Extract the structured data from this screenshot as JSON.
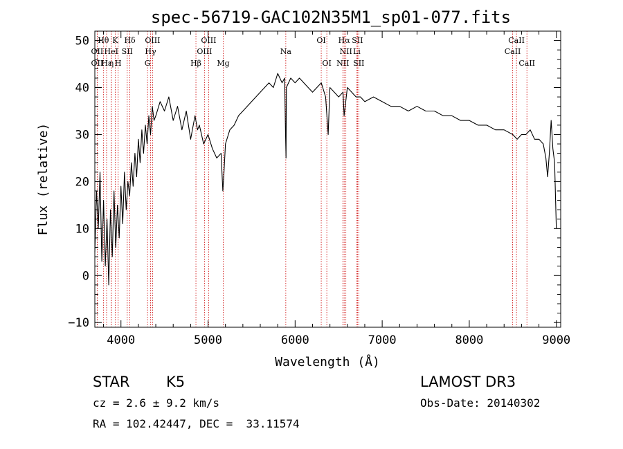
{
  "chart_data": {
    "type": "line",
    "title": "spec-56719-GAC102N35M1_sp01-077.fits",
    "xlabel": "Wavelength (Å)",
    "ylabel": "Flux (relative)",
    "xlim": [
      3700,
      9050
    ],
    "ylim": [
      -11,
      52
    ],
    "x_ticks": [
      4000,
      5000,
      6000,
      7000,
      8000,
      9000
    ],
    "y_ticks": [
      -10,
      0,
      10,
      20,
      30,
      40,
      50
    ],
    "x_tick_labels": [
      "4000",
      "5000",
      "6000",
      "7000",
      "8000",
      "9000"
    ],
    "y_tick_labels": [
      "−10",
      "0",
      "10",
      "20",
      "30",
      "40",
      "50"
    ],
    "series": [
      {
        "name": "flux",
        "x": [
          3700,
          3720,
          3740,
          3760,
          3780,
          3800,
          3820,
          3840,
          3860,
          3880,
          3900,
          3920,
          3940,
          3960,
          3980,
          4000,
          4020,
          4040,
          4060,
          4080,
          4100,
          4120,
          4140,
          4160,
          4180,
          4200,
          4220,
          4240,
          4260,
          4280,
          4300,
          4320,
          4340,
          4360,
          4380,
          4400,
          4450,
          4500,
          4550,
          4600,
          4650,
          4700,
          4750,
          4800,
          4850,
          4880,
          4900,
          4950,
          5000,
          5050,
          5100,
          5150,
          5170,
          5183,
          5200,
          5250,
          5300,
          5350,
          5400,
          5450,
          5500,
          5550,
          5600,
          5650,
          5700,
          5750,
          5800,
          5850,
          5880,
          5890,
          5896,
          5900,
          5950,
          6000,
          6050,
          6100,
          6150,
          6200,
          6250,
          6300,
          6350,
          6380,
          6400,
          6450,
          6500,
          6550,
          6563,
          6600,
          6650,
          6700,
          6750,
          6800,
          6900,
          7000,
          7100,
          7200,
          7300,
          7400,
          7500,
          7600,
          7700,
          7800,
          7900,
          8000,
          8100,
          8200,
          8300,
          8400,
          8500,
          8550,
          8600,
          8650,
          8700,
          8750,
          8800,
          8850,
          8880,
          8900,
          8920,
          8940,
          8960,
          8980,
          9000
        ],
        "y": [
          5,
          18,
          10,
          22,
          3,
          16,
          2,
          12,
          -2,
          14,
          4,
          18,
          6,
          15,
          8,
          19,
          11,
          22,
          14,
          20,
          17,
          24,
          19,
          26,
          21,
          29,
          24,
          31,
          26,
          32,
          28,
          34,
          30,
          36,
          33,
          34,
          37,
          35,
          38,
          33,
          36,
          31,
          35,
          29,
          34,
          31,
          32,
          28,
          30,
          27,
          25,
          26,
          18,
          22,
          28,
          31,
          32,
          34,
          35,
          36,
          37,
          38,
          39,
          40,
          41,
          40,
          43,
          41,
          42,
          30,
          25,
          40,
          42,
          41,
          42,
          41,
          40,
          39,
          40,
          41,
          38,
          30,
          40,
          39,
          38,
          39,
          34,
          40,
          39,
          38,
          38,
          37,
          38,
          37,
          36,
          36,
          35,
          36,
          35,
          35,
          34,
          34,
          33,
          33,
          32,
          32,
          31,
          31,
          30,
          29,
          30,
          30,
          31,
          29,
          29,
          28,
          25,
          21,
          26,
          33,
          27,
          24,
          10
        ]
      }
    ],
    "line_markers": [
      {
        "label": "Hθ",
        "x": 3798,
        "row": 1
      },
      {
        "label": "K",
        "x": 3934,
        "row": 1
      },
      {
        "label": "Hδ",
        "x": 4102,
        "row": 1
      },
      {
        "label": "OIII",
        "x": 4363,
        "row": 1
      },
      {
        "label": "OIII",
        "x": 5007,
        "row": 1
      },
      {
        "label": "OI",
        "x": 6300,
        "row": 1
      },
      {
        "label": "Hα",
        "x": 6563,
        "row": 1
      },
      {
        "label": "SII",
        "x": 6716,
        "row": 1
      },
      {
        "label": "CaII",
        "x": 8542,
        "row": 1
      },
      {
        "label": "OII",
        "x": 3727,
        "row": 2
      },
      {
        "label": "HeI",
        "x": 3889,
        "row": 2
      },
      {
        "label": "SII",
        "x": 4072,
        "row": 2
      },
      {
        "label": "Hγ",
        "x": 4340,
        "row": 2
      },
      {
        "label": "OIII",
        "x": 4959,
        "row": 2
      },
      {
        "label": "Na",
        "x": 5893,
        "row": 2
      },
      {
        "label": "NII",
        "x": 6583,
        "row": 2
      },
      {
        "label": "Li",
        "x": 6708,
        "row": 2
      },
      {
        "label": "CaII",
        "x": 8498,
        "row": 2
      },
      {
        "label": "OII",
        "x": 3727,
        "row": 3
      },
      {
        "label": "Hε",
        "x": 3835,
        "row": 3
      },
      {
        "label": "η",
        "x": 3889,
        "row": 3
      },
      {
        "label": "H",
        "x": 3968,
        "row": 3
      },
      {
        "label": "G",
        "x": 4305,
        "row": 3
      },
      {
        "label": "Hβ",
        "x": 4861,
        "row": 3
      },
      {
        "label": "Mg",
        "x": 5175,
        "row": 3
      },
      {
        "label": "OI",
        "x": 6364,
        "row": 3
      },
      {
        "label": "NII",
        "x": 6548,
        "row": 3
      },
      {
        "label": "SII",
        "x": 6731,
        "row": 3
      },
      {
        "label": "CaII",
        "x": 8662,
        "row": 3
      }
    ],
    "line_color": "#000000",
    "marker_color": "#cc0000",
    "grid": false
  },
  "info": {
    "object_class": "STAR",
    "subclass": "K5",
    "survey": "LAMOST DR3",
    "cz": "cz = 2.6 ± 9.2 km/s",
    "obs_date": "Obs-Date: 20140302",
    "coords": "RA = 102.42447, DEC =  33.11574"
  }
}
